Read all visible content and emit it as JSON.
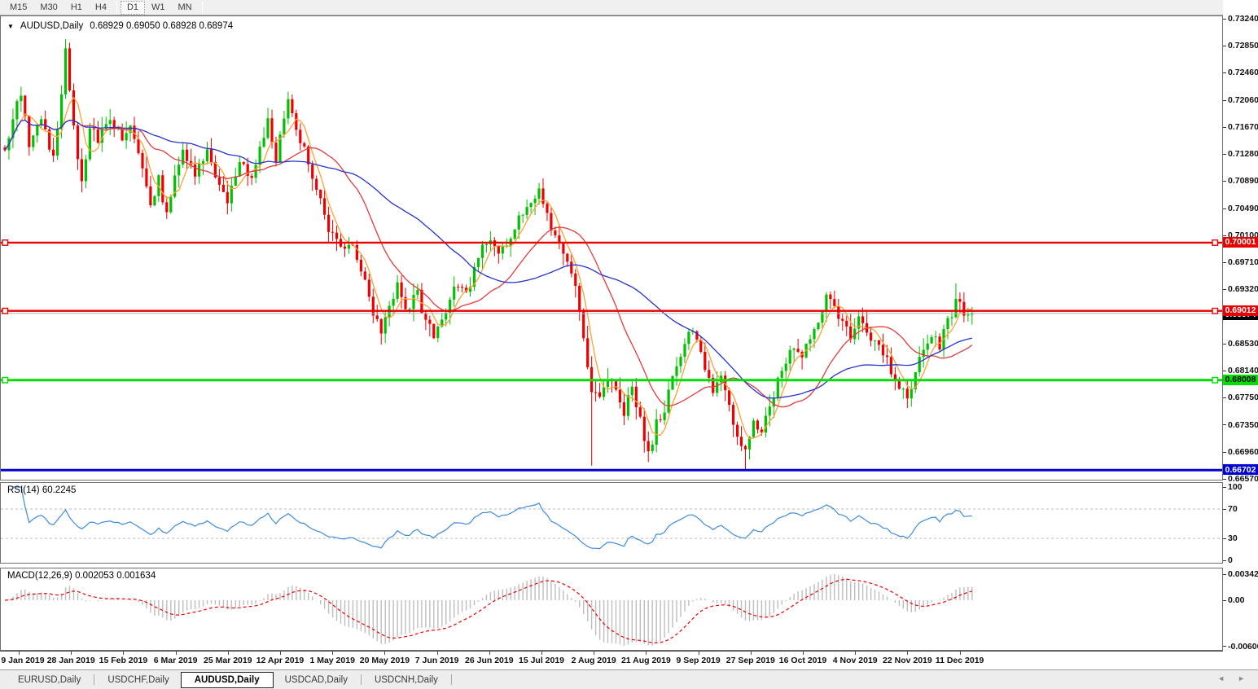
{
  "toolbar": {
    "timeframes": [
      {
        "label": "M15",
        "active": false
      },
      {
        "label": "M30",
        "active": false
      },
      {
        "label": "H1",
        "active": false
      },
      {
        "label": "H4",
        "active": false
      },
      {
        "label": "D1",
        "active": true
      },
      {
        "label": "W1",
        "active": false
      },
      {
        "label": "MN",
        "active": false
      }
    ]
  },
  "chart_header": {
    "dropdown_icon": "▼",
    "symbol": "AUDUSD,Daily",
    "ohlc": "0.68929 0.69050 0.68928 0.68974"
  },
  "price_axis": {
    "ticks": [
      "0.73240",
      "0.72850",
      "0.72460",
      "0.72060",
      "0.71670",
      "0.71280",
      "0.70890",
      "0.70490",
      "0.70100",
      "0.69710",
      "0.69320",
      "0.68930",
      "0.68530",
      "0.68140",
      "0.67750",
      "0.67350",
      "0.66960",
      "0.66570"
    ]
  },
  "hlines": [
    {
      "name": "resistance-line-070001",
      "price": 0.70001,
      "label": "0.70001",
      "color": "#e60000",
      "text_color": "#ffffff",
      "width": 2.4,
      "handles": true
    },
    {
      "name": "resistance-line-069012",
      "price": 0.69012,
      "label": "0.69012",
      "color": "#e60000",
      "text_color": "#ffffff",
      "width": 2.4,
      "handles": true
    },
    {
      "name": "support-line-068008",
      "price": 0.68008,
      "label": "0.68008",
      "color": "#00dd00",
      "text_color": "#000000",
      "width": 3,
      "handles": true
    },
    {
      "name": "support-line-066702",
      "price": 0.66702,
      "label": "0.66702",
      "color": "#0000d2",
      "text_color": "#ffffff",
      "width": 3,
      "handles": false
    }
  ],
  "current_price": {
    "value": 0.68974,
    "label": "0.68974",
    "line_color": "#b4b4b4",
    "badge_bg": "#000000",
    "badge_fg": "#ffffff"
  },
  "rsi_pane": {
    "label": "RSI(14) 60.2245",
    "line_color": "#3c8be0",
    "levels": [
      {
        "value": 100,
        "label": "100",
        "dashed": false
      },
      {
        "value": 70,
        "label": "70",
        "dashed": true
      },
      {
        "value": 30,
        "label": "30",
        "dashed": true
      },
      {
        "value": 0,
        "label": "0",
        "dashed": false
      }
    ]
  },
  "macd_pane": {
    "label": "MACD(12,26,9) 0.002053 0.001634",
    "histogram_color": "#bdbdbd",
    "signal_color": "#f00000",
    "axis": [
      {
        "value": 0.003421,
        "label": "0.003421"
      },
      {
        "value": 0,
        "label": "0.00"
      },
      {
        "value": -0.006069,
        "label": "-0.006069"
      }
    ]
  },
  "date_axis": {
    "labels": [
      "9 Jan 2019",
      "28 Jan 2019",
      "15 Feb 2019",
      "6 Mar 2019",
      "25 Mar 2019",
      "12 Apr 2019",
      "1 May 2019",
      "20 May 2019",
      "7 Jun 2019",
      "26 Jun 2019",
      "15 Jul 2019",
      "2 Aug 2019",
      "21 Aug 2019",
      "9 Sep 2019",
      "27 Sep 2019",
      "16 Oct 2019",
      "4 Nov 2019",
      "22 Nov 2019",
      "11 Dec 2019"
    ]
  },
  "tabs": {
    "items": [
      {
        "label": "EURUSD,Daily",
        "active": false
      },
      {
        "label": "USDCHF,Daily",
        "active": false
      },
      {
        "label": "AUDUSD,Daily",
        "active": true
      },
      {
        "label": "USDCAD,Daily",
        "active": false
      },
      {
        "label": "USDCNH,Daily",
        "active": false
      }
    ],
    "scroll_left_icon": "◄",
    "scroll_right_icon": "►"
  },
  "chart_data": {
    "type": "candlestick",
    "symbol": "AUDUSD",
    "timeframe": "Daily",
    "title": "AUDUSD,Daily",
    "open": 0.68929,
    "high": 0.6905,
    "low": 0.68928,
    "close": 0.68974,
    "x_range": [
      "9 Jan 2019",
      "11 Dec 2019"
    ],
    "y_range": [
      0.6657,
      0.7324
    ],
    "num_candles": 240,
    "up_color": "#00c000",
    "down_color": "#ee0000",
    "ma_fast": {
      "period": 5,
      "color": "#ffa030"
    },
    "ma_mid": {
      "period": 20,
      "color": "#e03c3c"
    },
    "ma_slow": {
      "period": 45,
      "color": "#2633cc"
    },
    "horizontal_levels": [
      0.70001,
      0.69012,
      0.68008,
      0.66702
    ],
    "indicators": [
      {
        "name": "RSI",
        "period": 14,
        "value": 60.2245,
        "scale": [
          0,
          100
        ],
        "levels": [
          30,
          70
        ]
      },
      {
        "name": "MACD",
        "fast": 12,
        "slow": 26,
        "signal": 9,
        "values": [
          0.002053,
          0.001634
        ],
        "scale": [
          -0.006069,
          0.003421
        ]
      }
    ],
    "price_path_anchors": [
      [
        0,
        0.713
      ],
      [
        2,
        0.7185
      ],
      [
        4,
        0.7215
      ],
      [
        6,
        0.714
      ],
      [
        9,
        0.7175
      ],
      [
        12,
        0.712
      ],
      [
        14,
        0.721
      ],
      [
        15,
        0.7285
      ],
      [
        16,
        0.7215
      ],
      [
        19,
        0.7085
      ],
      [
        21,
        0.717
      ],
      [
        23,
        0.7145
      ],
      [
        26,
        0.7185
      ],
      [
        29,
        0.7145
      ],
      [
        31,
        0.7175
      ],
      [
        34,
        0.711
      ],
      [
        36,
        0.705
      ],
      [
        38,
        0.709
      ],
      [
        40,
        0.704
      ],
      [
        42,
        0.709
      ],
      [
        44,
        0.713
      ],
      [
        47,
        0.7095
      ],
      [
        50,
        0.7135
      ],
      [
        52,
        0.709
      ],
      [
        55,
        0.706
      ],
      [
        58,
        0.7115
      ],
      [
        61,
        0.709
      ],
      [
        63,
        0.714
      ],
      [
        65,
        0.7175
      ],
      [
        67,
        0.7125
      ],
      [
        70,
        0.72
      ],
      [
        71,
        0.718
      ],
      [
        73,
        0.715
      ],
      [
        76,
        0.71
      ],
      [
        78,
        0.7065
      ],
      [
        80,
        0.702
      ],
      [
        83,
        0.7
      ],
      [
        86,
        0.699
      ],
      [
        89,
        0.694
      ],
      [
        91,
        0.69
      ],
      [
        93,
        0.6875
      ],
      [
        95,
        0.6905
      ],
      [
        97,
        0.6935
      ],
      [
        99,
        0.69
      ],
      [
        102,
        0.6925
      ],
      [
        104,
        0.6885
      ],
      [
        106,
        0.6865
      ],
      [
        109,
        0.6905
      ],
      [
        111,
        0.6935
      ],
      [
        114,
        0.6925
      ],
      [
        116,
        0.696
      ],
      [
        118,
        0.699
      ],
      [
        120,
        0.7005
      ],
      [
        122,
        0.6985
      ],
      [
        125,
        0.701
      ],
      [
        127,
        0.704
      ],
      [
        130,
        0.706
      ],
      [
        132,
        0.708
      ],
      [
        134,
        0.704
      ],
      [
        136,
        0.701
      ],
      [
        138,
        0.6985
      ],
      [
        140,
        0.696
      ],
      [
        142,
        0.6905
      ],
      [
        143,
        0.6855
      ],
      [
        145,
        0.679
      ],
      [
        147,
        0.6775
      ],
      [
        149,
        0.68
      ],
      [
        151,
        0.6785
      ],
      [
        153,
        0.675
      ],
      [
        155,
        0.6795
      ],
      [
        157,
        0.674
      ],
      [
        159,
        0.669
      ],
      [
        161,
        0.674
      ],
      [
        163,
        0.676
      ],
      [
        165,
        0.68
      ],
      [
        167,
        0.684
      ],
      [
        169,
        0.6875
      ],
      [
        171,
        0.686
      ],
      [
        173,
        0.682
      ],
      [
        175,
        0.6785
      ],
      [
        177,
        0.6805
      ],
      [
        179,
        0.676
      ],
      [
        181,
        0.672
      ],
      [
        183,
        0.67
      ],
      [
        185,
        0.674
      ],
      [
        187,
        0.672
      ],
      [
        189,
        0.6765
      ],
      [
        191,
        0.68
      ],
      [
        193,
        0.6825
      ],
      [
        195,
        0.685
      ],
      [
        197,
        0.6835
      ],
      [
        199,
        0.686
      ],
      [
        201,
        0.6885
      ],
      [
        203,
        0.692
      ],
      [
        205,
        0.6905
      ],
      [
        207,
        0.6885
      ],
      [
        209,
        0.6865
      ],
      [
        211,
        0.689
      ],
      [
        213,
        0.687
      ],
      [
        215,
        0.6855
      ],
      [
        217,
        0.684
      ],
      [
        219,
        0.6815
      ],
      [
        221,
        0.679
      ],
      [
        223,
        0.6775
      ],
      [
        225,
        0.6805
      ],
      [
        227,
        0.685
      ],
      [
        229,
        0.6865
      ],
      [
        231,
        0.685
      ],
      [
        233,
        0.6885
      ],
      [
        235,
        0.6915
      ],
      [
        237,
        0.69
      ],
      [
        239,
        0.68974
      ]
    ],
    "forced_wicks": {
      "15": {
        "high": 0.7295
      },
      "145": {
        "low": 0.6677
      },
      "159": {
        "low": 0.6682
      },
      "183": {
        "low": 0.6671
      },
      "235": {
        "high": 0.6941
      }
    }
  }
}
